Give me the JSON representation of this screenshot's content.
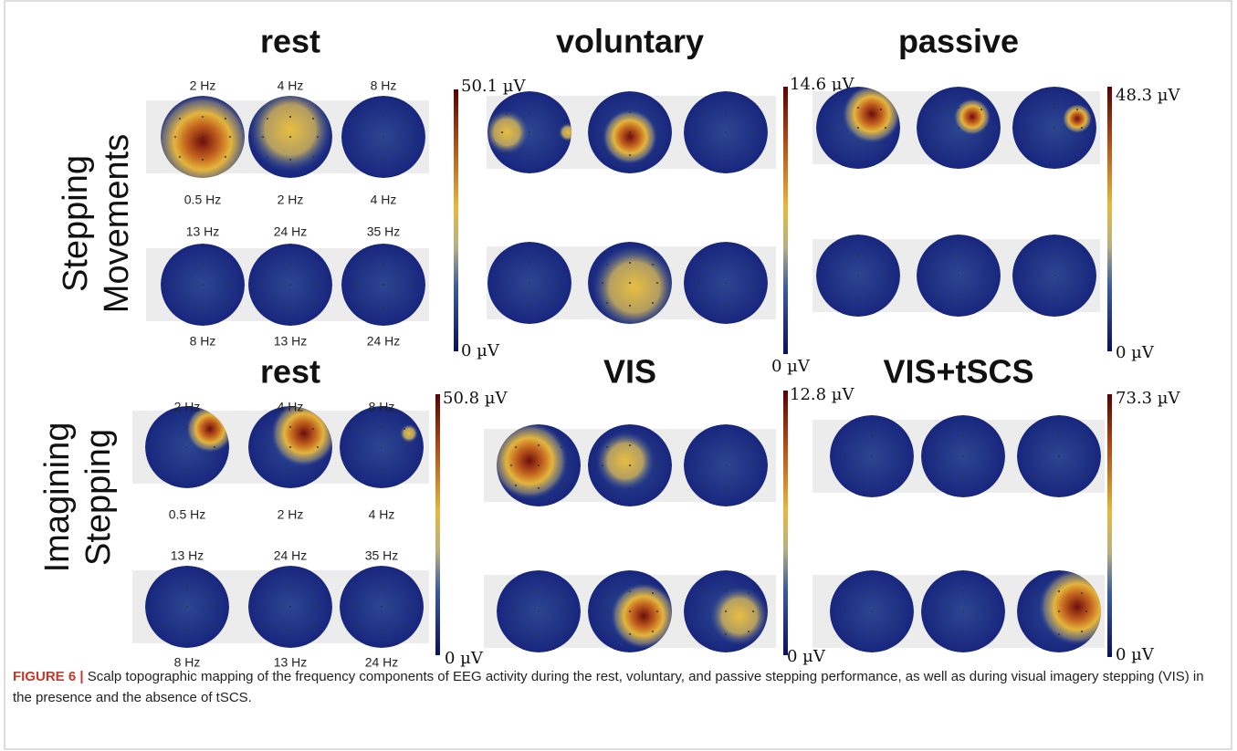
{
  "row_labels": [
    [
      "Stepping",
      "Movements"
    ],
    [
      "Imagining",
      "Stepping"
    ]
  ],
  "panels": [
    {
      "title": "rest",
      "max_label": "50.1 µV",
      "min_label": "0 µV",
      "above_1": [
        "2 Hz",
        "4 Hz",
        "8 Hz"
      ],
      "below_1": [
        "0.5 Hz",
        "2 Hz",
        "4 Hz"
      ],
      "above_2": [
        "13 Hz",
        "24 Hz",
        "35 Hz"
      ],
      "below_2": [
        "8 Hz",
        "13 Hz",
        "24 Hz"
      ]
    },
    {
      "title": "voluntary",
      "max_label": "14.6 µV",
      "min_label": "0 µV"
    },
    {
      "title": "passive",
      "max_label": "48.3 µV",
      "min_label": "0 µV"
    },
    {
      "title": "rest",
      "max_label": "50.8 µV",
      "min_label": "0 µV",
      "above_1": [
        "2 Hz",
        "4 Hz",
        "8 Hz"
      ],
      "below_1": [
        "0.5 Hz",
        "2 Hz",
        "4 Hz"
      ],
      "above_2": [
        "13 Hz",
        "24 Hz",
        "35 Hz"
      ],
      "below_2": [
        "8 Hz",
        "13 Hz",
        "24 Hz"
      ]
    },
    {
      "title": "VIS",
      "max_label": "12.8 µV",
      "min_label": "0 µV"
    },
    {
      "title": "VIS+tSCS",
      "max_label": "73.3 µV",
      "min_label": "0 µV"
    }
  ],
  "caption": {
    "label": "FIGURE 6 |",
    "text": "Scalp topographic mapping of the frequency components of EEG activity during the rest, voluntary, and passive stepping performance, as well as during visual imagery stepping (VIS) in the presence and the absence of tSCS."
  }
}
